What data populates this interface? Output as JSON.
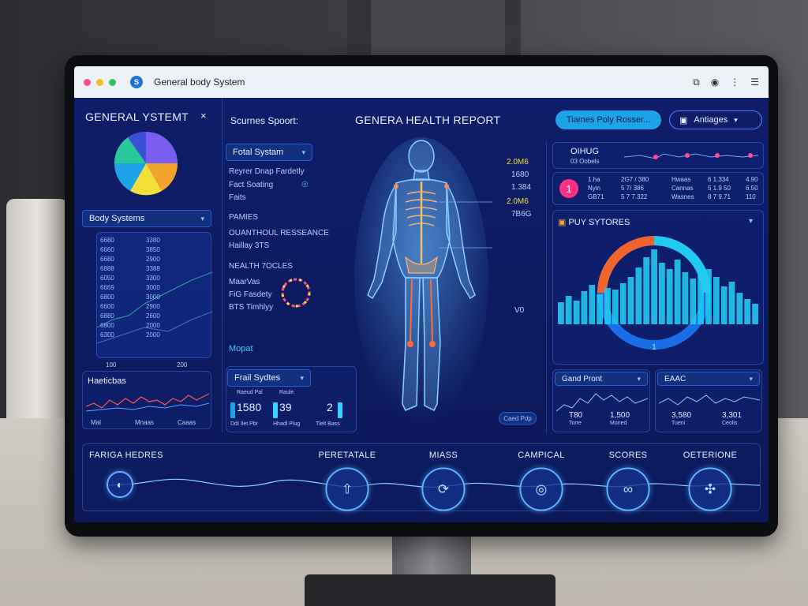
{
  "window": {
    "title": "General body System",
    "icons": [
      "bookmark-icon",
      "record-icon",
      "more-icon",
      "menu-icon"
    ]
  },
  "sidebar": {
    "title": "GENERAL YSTEMT",
    "close": "×",
    "body_systems_label": "Body Systems",
    "table": [
      [
        "6680",
        "3380"
      ],
      [
        "6660",
        "3850"
      ],
      [
        "6680",
        "2900"
      ],
      [
        "6888",
        "3388"
      ],
      [
        "6050",
        "3300"
      ],
      [
        "6669",
        "3000"
      ],
      [
        "6800",
        "3000"
      ],
      [
        "6600",
        "2900"
      ],
      [
        "6880",
        "2600"
      ],
      [
        "6800",
        "2000"
      ],
      [
        "6300",
        "2000"
      ]
    ],
    "table_footer": [
      "100",
      "200"
    ],
    "health_chart_label": "Haeticbas",
    "health_chart_footer": [
      "Mal",
      "Mnaas",
      "Caaas"
    ]
  },
  "header": {
    "scores_label": "Scurnes Spoort:",
    "report_title": "GENERA HEALTH REPORT",
    "primary_button": "Tiames Poly Rosser...",
    "secondary_button": "Antiages"
  },
  "middle": {
    "dropdown": "Fotal Systam",
    "list1": [
      "Reyrer Dnap Fardetly",
      "Fact Soating",
      "Faits"
    ],
    "section2": "PAMIES",
    "list2": [
      "OUANTHOUL RESSEANCE",
      "Haillay 3TS"
    ],
    "section3": "NEALTH 7OCLES",
    "list3": [
      "MaarVas",
      "FiG Fasdety",
      "BTS Timhlyy"
    ],
    "mopat": "Mopat",
    "dropdown2": "Frail Sydtes",
    "stats": [
      {
        "head": "Raeud Pal",
        "value": "1580",
        "foot": "DdI Ilet Pbr"
      },
      {
        "head": "Raule",
        "value": "39",
        "foot": "Hhadl Plug"
      },
      {
        "head": "",
        "value": "2",
        "foot": "Tlelt Bass"
      }
    ],
    "body_annotations": [
      "2.0M6",
      "1680",
      "1.384",
      "2.0M6",
      "7B6G",
      "V0"
    ],
    "button_small": "Caed Pdp"
  },
  "right": {
    "top_title": "OIHUG",
    "top_sub": "03 Oobels",
    "badge": "1",
    "top_rows": [
      [
        "1.ha",
        "2G7 / 380",
        "Hwaas",
        "6 1.334",
        "4.90"
      ],
      [
        "Nyin",
        "5 7/ 386",
        "Cannas",
        "5 1.9 50",
        "6.50"
      ],
      [
        "GB71",
        "5 7 7.322",
        "Wasnes",
        "8 7 9.71",
        "110"
      ]
    ],
    "chart_title": "PUY SYTORES",
    "chart_bottom_value": "1",
    "card1_title": "Gand Pront",
    "card1_values": [
      "T80",
      "1,500"
    ],
    "card1_subs": [
      "Torre",
      "Moned"
    ],
    "card2_title": "EAAC",
    "card2_values": [
      "3,580",
      "3,301"
    ],
    "card2_subs": [
      "Tueni",
      "Ceolis"
    ]
  },
  "timeline": {
    "start_label": "FARIGA HEDRES",
    "nodes": [
      {
        "label": "PERETATALE",
        "icon": "arrow-up-icon"
      },
      {
        "label": "MIASS",
        "icon": "cycle-icon"
      },
      {
        "label": "CAMPICAL",
        "icon": "dial-icon"
      },
      {
        "label": "SCORES",
        "icon": "loop-icon"
      },
      {
        "label": "OETERIONE",
        "icon": "fan-icon"
      }
    ]
  },
  "colors": {
    "accent": "#1ea2e8",
    "background": "#0d1a5c",
    "orange": "#f2642c",
    "cyan": "#22c9f0"
  }
}
